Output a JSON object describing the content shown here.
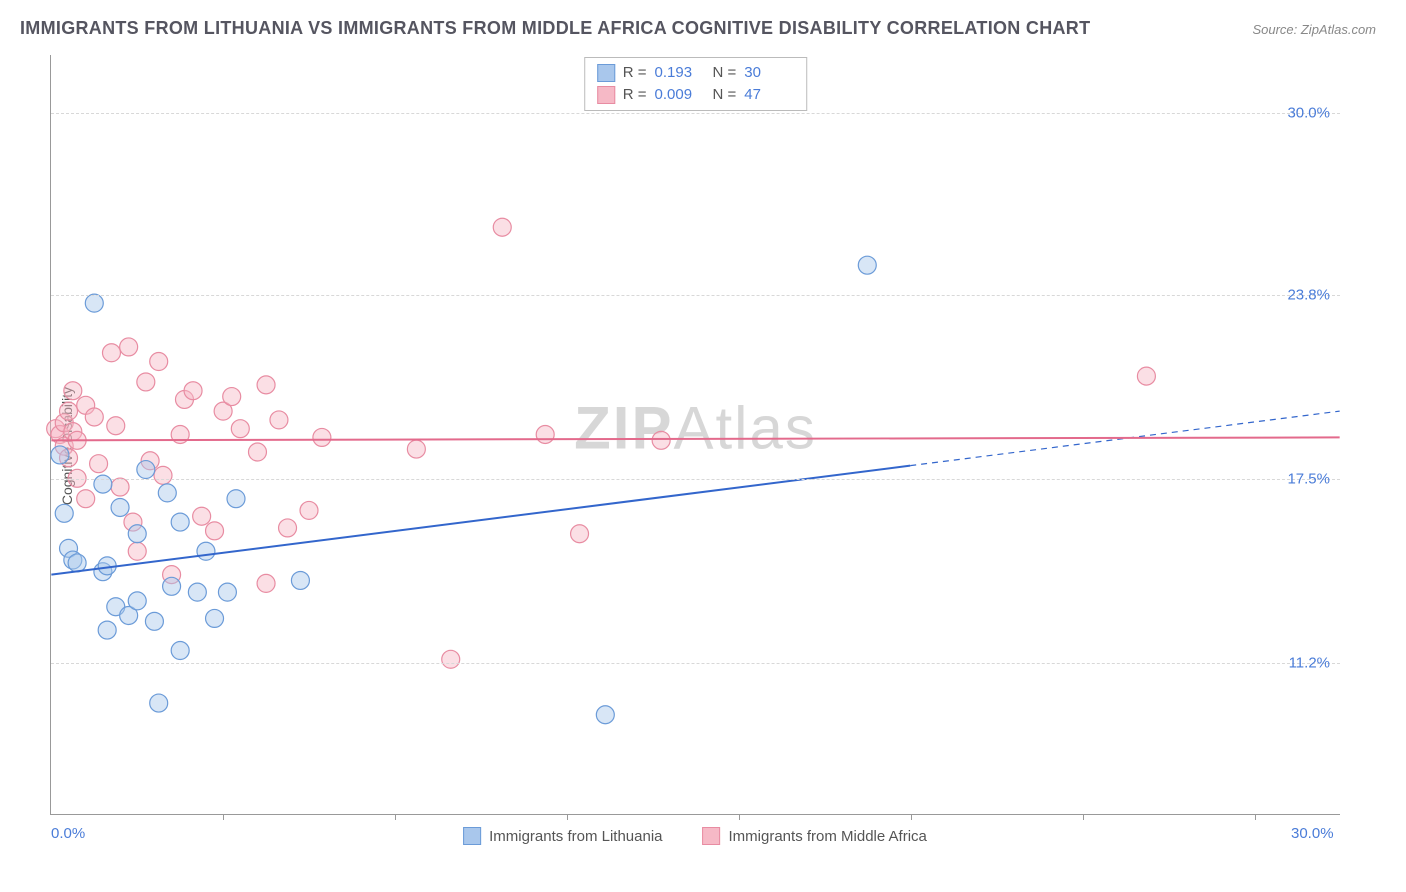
{
  "title": "IMMIGRANTS FROM LITHUANIA VS IMMIGRANTS FROM MIDDLE AFRICA COGNITIVE DISABILITY CORRELATION CHART",
  "source": "Source: ZipAtlas.com",
  "y_axis_label": "Cognitive Disability",
  "watermark": "ZIPAtlas",
  "chart": {
    "type": "scatter",
    "xlim": [
      0,
      30
    ],
    "ylim": [
      6,
      32
    ],
    "y_gridlines": [
      11.2,
      17.5,
      23.8,
      30.0
    ],
    "x_ticks_minor": [
      4,
      8,
      12,
      16,
      20,
      24,
      28
    ],
    "x_tick_labels": [
      {
        "pos": 0,
        "label": "0.0%"
      },
      {
        "pos": 30,
        "label": "30.0%"
      }
    ],
    "y_tick_labels": [
      "11.2%",
      "17.5%",
      "23.8%",
      "30.0%"
    ],
    "background_color": "#ffffff",
    "grid_color": "#d8d8d8",
    "axis_color": "#999999",
    "tick_label_color": "#4a7cd8",
    "marker_radius": 9,
    "series": [
      {
        "name": "Immigrants from Lithuania",
        "fill": "#a9c7ec",
        "stroke": "#6b9bd8",
        "R": "0.193",
        "N": "30",
        "trend": {
          "y_start": 14.2,
          "y_end": 19.8,
          "solid_to_x": 20,
          "color": "#3366cc",
          "width": 2
        },
        "points": [
          [
            0.2,
            18.3
          ],
          [
            0.3,
            16.3
          ],
          [
            0.4,
            15.1
          ],
          [
            0.5,
            14.7
          ],
          [
            0.6,
            14.6
          ],
          [
            1.0,
            23.5
          ],
          [
            1.2,
            17.3
          ],
          [
            1.2,
            14.3
          ],
          [
            1.3,
            14.5
          ],
          [
            1.3,
            12.3
          ],
          [
            1.5,
            13.1
          ],
          [
            1.6,
            16.5
          ],
          [
            1.8,
            12.8
          ],
          [
            2.0,
            15.6
          ],
          [
            2.0,
            13.3
          ],
          [
            2.2,
            17.8
          ],
          [
            2.4,
            12.6
          ],
          [
            2.5,
            9.8
          ],
          [
            2.7,
            17.0
          ],
          [
            2.8,
            13.8
          ],
          [
            3.0,
            16.0
          ],
          [
            3.0,
            11.6
          ],
          [
            3.4,
            13.6
          ],
          [
            3.6,
            15.0
          ],
          [
            3.8,
            12.7
          ],
          [
            4.1,
            13.6
          ],
          [
            4.3,
            16.8
          ],
          [
            5.8,
            14.0
          ],
          [
            12.9,
            9.4
          ],
          [
            19.0,
            24.8
          ]
        ]
      },
      {
        "name": "Immigrants from Middle Africa",
        "fill": "#f6b9c6",
        "stroke": "#e88ca2",
        "R": "0.009",
        "N": "47",
        "trend": {
          "y_start": 18.8,
          "y_end": 18.9,
          "solid_to_x": 30,
          "color": "#e36a8c",
          "width": 2
        },
        "points": [
          [
            0.1,
            19.2
          ],
          [
            0.2,
            19.0
          ],
          [
            0.3,
            19.4
          ],
          [
            0.3,
            18.6
          ],
          [
            0.4,
            19.8
          ],
          [
            0.4,
            18.2
          ],
          [
            0.5,
            20.5
          ],
          [
            0.5,
            19.1
          ],
          [
            0.6,
            18.8
          ],
          [
            0.6,
            17.5
          ],
          [
            0.8,
            20.0
          ],
          [
            0.8,
            16.8
          ],
          [
            1.0,
            19.6
          ],
          [
            1.1,
            18.0
          ],
          [
            1.4,
            21.8
          ],
          [
            1.5,
            19.3
          ],
          [
            1.6,
            17.2
          ],
          [
            1.8,
            22.0
          ],
          [
            1.9,
            16.0
          ],
          [
            2.0,
            15.0
          ],
          [
            2.2,
            20.8
          ],
          [
            2.3,
            18.1
          ],
          [
            2.5,
            21.5
          ],
          [
            2.6,
            17.6
          ],
          [
            2.8,
            14.2
          ],
          [
            3.0,
            19.0
          ],
          [
            3.1,
            20.2
          ],
          [
            3.3,
            20.5
          ],
          [
            3.5,
            16.2
          ],
          [
            3.8,
            15.7
          ],
          [
            4.0,
            19.8
          ],
          [
            4.2,
            20.3
          ],
          [
            4.4,
            19.2
          ],
          [
            4.8,
            18.4
          ],
          [
            5.0,
            13.9
          ],
          [
            5.3,
            19.5
          ],
          [
            5.5,
            15.8
          ],
          [
            6.0,
            16.4
          ],
          [
            6.3,
            18.9
          ],
          [
            8.5,
            18.5
          ],
          [
            9.3,
            11.3
          ],
          [
            10.5,
            26.1
          ],
          [
            11.5,
            19.0
          ],
          [
            12.3,
            15.6
          ],
          [
            14.2,
            18.8
          ],
          [
            25.5,
            21.0
          ],
          [
            5.0,
            20.7
          ]
        ]
      }
    ]
  },
  "stats_legend": {
    "rows": [
      {
        "sw_fill": "#a9c7ec",
        "sw_stroke": "#6b9bd8",
        "r_label": "R =",
        "r_val": "0.193",
        "n_label": "N =",
        "n_val": "30"
      },
      {
        "sw_fill": "#f6b9c6",
        "sw_stroke": "#e88ca2",
        "r_label": "R =",
        "r_val": "0.009",
        "n_label": "N =",
        "n_val": "47"
      }
    ]
  },
  "bottom_legend": [
    {
      "sw_fill": "#a9c7ec",
      "sw_stroke": "#6b9bd8",
      "label": "Immigrants from Lithuania"
    },
    {
      "sw_fill": "#f6b9c6",
      "sw_stroke": "#e88ca2",
      "label": "Immigrants from Middle Africa"
    }
  ]
}
